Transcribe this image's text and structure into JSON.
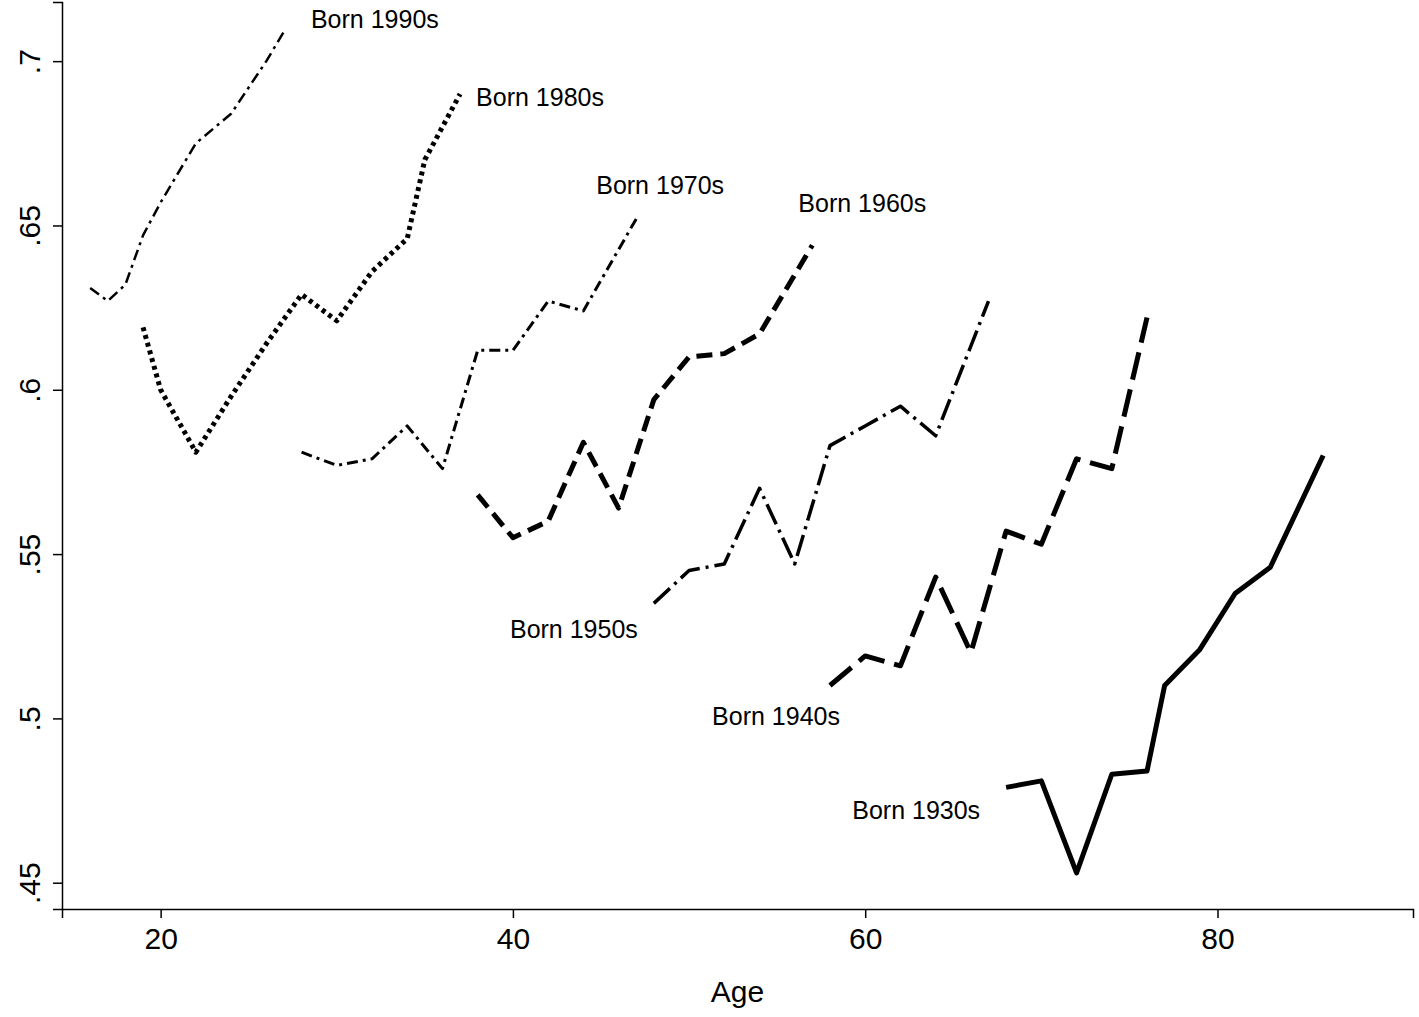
{
  "chart_data": {
    "type": "line",
    "x_label": "Age",
    "xlim": [
      14.4,
      91.1
    ],
    "xticks": [
      20,
      40,
      60,
      80
    ],
    "ylim": [
      0.442,
      0.718
    ],
    "yticks": [
      {
        "value": 0.45,
        "label": ".45"
      },
      {
        "value": 0.5,
        "label": ".5"
      },
      {
        "value": 0.55,
        "label": ".55"
      },
      {
        "value": 0.6,
        "label": ".6"
      },
      {
        "value": 0.65,
        "label": ".65"
      },
      {
        "value": 0.7,
        "label": ".7"
      }
    ],
    "grid": false,
    "series": [
      {
        "name": "Born 1990s",
        "color": "#000000",
        "line_style": "dashdot",
        "x": [
          16,
          17,
          18,
          19,
          20,
          22,
          24,
          25,
          26,
          27
        ],
        "values": [
          0.631,
          0.627,
          0.632,
          0.647,
          0.657,
          0.675,
          0.684,
          0.692,
          0.7,
          0.709
        ]
      },
      {
        "name": "Born 1980s",
        "color": "#000000",
        "line_style": "dotted",
        "x": [
          19,
          20,
          22,
          24,
          26,
          28,
          30,
          32,
          34,
          35,
          37
        ],
        "values": [
          0.619,
          0.6,
          0.581,
          0.598,
          0.614,
          0.629,
          0.621,
          0.636,
          0.646,
          0.67,
          0.69
        ]
      },
      {
        "name": "Born 1970s",
        "color": "#000000",
        "line_style": "dashdot",
        "x": [
          28,
          30,
          32,
          34,
          36,
          38,
          40,
          42,
          44,
          47
        ],
        "values": [
          0.581,
          0.577,
          0.579,
          0.589,
          0.576,
          0.612,
          0.612,
          0.627,
          0.624,
          0.652
        ]
      },
      {
        "name": "Born 1960s",
        "color": "#000000",
        "line_style": "dashed",
        "x": [
          38,
          40,
          42,
          44,
          46,
          48,
          50,
          52,
          54,
          57
        ],
        "values": [
          0.568,
          0.555,
          0.56,
          0.584,
          0.564,
          0.597,
          0.61,
          0.611,
          0.617,
          0.644
        ]
      },
      {
        "name": "Born 1950s",
        "color": "#000000",
        "line_style": "longdashdot",
        "x": [
          48,
          50,
          52,
          54,
          56,
          58,
          60,
          62,
          64,
          67
        ],
        "values": [
          0.535,
          0.545,
          0.547,
          0.57,
          0.547,
          0.583,
          0.589,
          0.595,
          0.586,
          0.627
        ]
      },
      {
        "name": "Born 1940s",
        "color": "#000000",
        "line_style": "longdash",
        "x": [
          58,
          60,
          62,
          64,
          66,
          68,
          70,
          72,
          74,
          76
        ],
        "values": [
          0.51,
          0.519,
          0.516,
          0.543,
          0.52,
          0.557,
          0.553,
          0.579,
          0.576,
          0.622
        ]
      },
      {
        "name": "Born 1930s",
        "color": "#000000",
        "line_style": "solid",
        "x": [
          68,
          70,
          72,
          74,
          76,
          77,
          79,
          81,
          83,
          86
        ],
        "values": [
          0.479,
          0.481,
          0.453,
          0.483,
          0.484,
          0.51,
          0.521,
          0.538,
          0.546,
          0.58
        ]
      }
    ]
  }
}
